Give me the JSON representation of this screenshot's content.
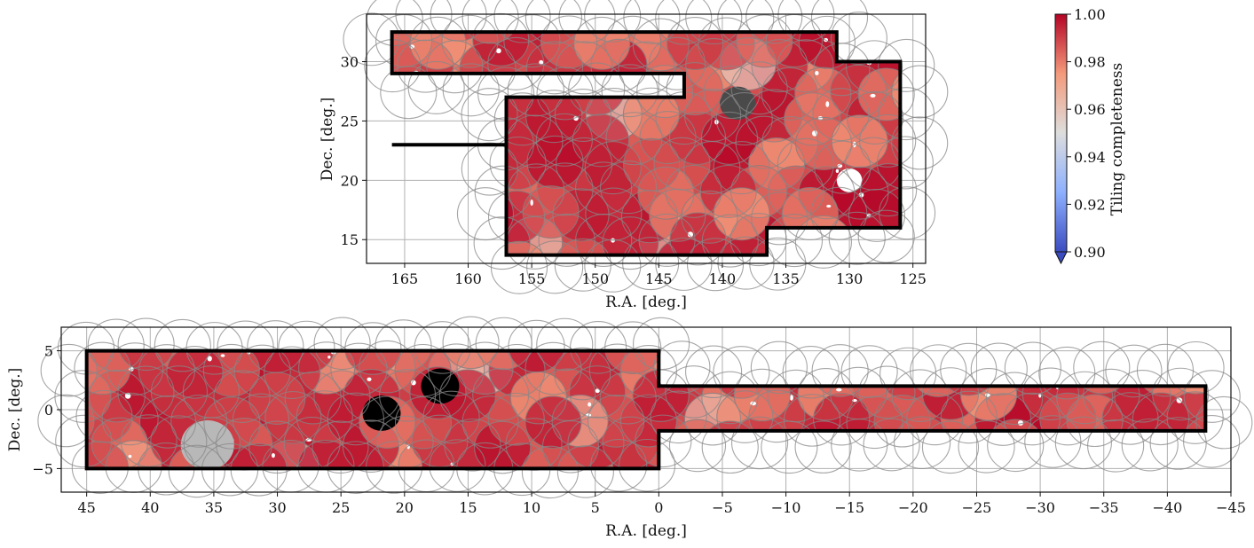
{
  "colors": {
    "cmap": [
      "#3b4cc0",
      "#8db0fe",
      "#dddddd",
      "#f49a7b",
      "#b40426"
    ],
    "masked_gray": "#4a4a4a",
    "light_gray": "#b8b8b8",
    "black": "#000000"
  },
  "chart_data": [
    {
      "type": "scatter",
      "panel": "top",
      "xlabel": "R.A. [deg.]",
      "ylabel": "Dec. [deg.]",
      "xlim": [
        168,
        124
      ],
      "ylim": [
        13,
        34
      ],
      "x_ticks": [
        165,
        160,
        155,
        150,
        145,
        140,
        135,
        130,
        125
      ],
      "x_tick_labels": [
        "165",
        "160",
        "155",
        "150",
        "145",
        "140",
        "135",
        "130",
        "125"
      ],
      "y_ticks": [
        15,
        20,
        25,
        30
      ],
      "y_tick_labels": [
        "15",
        "20",
        "25",
        "30"
      ],
      "grid": true,
      "boundary_polygon": [
        [
          166,
          32.5
        ],
        [
          131,
          32.5
        ],
        [
          131,
          30
        ],
        [
          126,
          30
        ],
        [
          126,
          16
        ],
        [
          136.5,
          16
        ],
        [
          136.5,
          13.7
        ],
        [
          157,
          13.7
        ],
        [
          157,
          27
        ],
        [
          143,
          27
        ],
        [
          143,
          29
        ],
        [
          166,
          29
        ]
      ],
      "boundary_polygon_lower": [
        [
          166,
          23
        ],
        [
          157,
          23
        ]
      ],
      "field_radius_deg": 2.2,
      "masked_regions": [
        {
          "x": 138.8,
          "y": 26.5,
          "r": 1.4,
          "shade": "dark"
        }
      ],
      "holes": [
        {
          "x": 130,
          "y": 20,
          "r": 1.0
        }
      ]
    },
    {
      "type": "scatter",
      "panel": "bottom",
      "xlabel": "R.A. [deg.]",
      "ylabel": "Dec. [deg.]",
      "xlim": [
        47,
        -45
      ],
      "ylim": [
        -7,
        7
      ],
      "x_ticks": [
        45,
        40,
        35,
        30,
        25,
        20,
        15,
        10,
        5,
        0,
        -5,
        -10,
        -15,
        -20,
        -25,
        -30,
        -35,
        -40,
        -45
      ],
      "x_tick_labels": [
        "45",
        "40",
        "35",
        "30",
        "25",
        "20",
        "15",
        "10",
        "5",
        "0",
        "−5",
        "−10",
        "−15",
        "−20",
        "−25",
        "−30",
        "−35",
        "−40",
        "−45"
      ],
      "y_ticks": [
        -5,
        0,
        5
      ],
      "y_tick_labels": [
        "−5",
        "0",
        "5"
      ],
      "grid": true,
      "boundary_polygon": [
        [
          45,
          5
        ],
        [
          0,
          5
        ],
        [
          0,
          2
        ],
        [
          -43,
          2
        ],
        [
          -43,
          -1.8
        ],
        [
          0,
          -1.8
        ],
        [
          0,
          -5
        ],
        [
          45,
          -5
        ]
      ],
      "field_radius_deg": 2.2,
      "masked_regions": [
        {
          "x": 17.2,
          "y": 2.0,
          "r": 1.5,
          "shade": "black"
        },
        {
          "x": 21.8,
          "y": -0.3,
          "r": 1.5,
          "shade": "black"
        },
        {
          "x": 35.5,
          "y": -3.0,
          "r": 2.1,
          "shade": "light"
        }
      ]
    },
    {
      "type": "colorbar",
      "label": "Tiling completeness",
      "vmin": 0.9,
      "vmax": 1.0,
      "ticks": [
        0.9,
        0.92,
        0.94,
        0.96,
        0.98,
        1.0
      ],
      "tick_labels": [
        "0.90",
        "0.92",
        "0.94",
        "0.96",
        "0.98",
        "1.00"
      ],
      "extend": "min",
      "cmap": "coolwarm"
    }
  ]
}
